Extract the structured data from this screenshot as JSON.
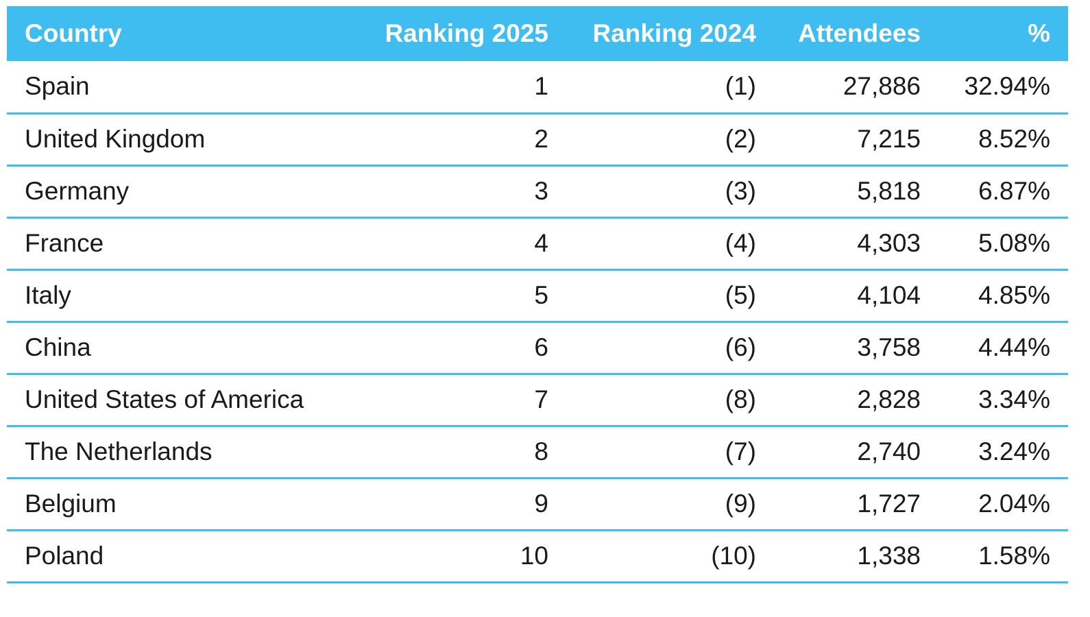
{
  "chart_data": {
    "type": "table",
    "columns": [
      "Country",
      "Ranking 2025",
      "Ranking 2024",
      "Attendees",
      "%"
    ],
    "rows": [
      {
        "country": "Spain",
        "rank2025": "1",
        "rank2024": "(1)",
        "attendees": "27,886",
        "pct": "32.94%"
      },
      {
        "country": "United Kingdom",
        "rank2025": "2",
        "rank2024": "(2)",
        "attendees": "7,215",
        "pct": "8.52%"
      },
      {
        "country": "Germany",
        "rank2025": "3",
        "rank2024": "(3)",
        "attendees": "5,818",
        "pct": "6.87%"
      },
      {
        "country": "France",
        "rank2025": "4",
        "rank2024": "(4)",
        "attendees": "4,303",
        "pct": "5.08%"
      },
      {
        "country": "Italy",
        "rank2025": "5",
        "rank2024": "(5)",
        "attendees": "4,104",
        "pct": "4.85%"
      },
      {
        "country": "China",
        "rank2025": "6",
        "rank2024": "(6)",
        "attendees": "3,758",
        "pct": "4.44%"
      },
      {
        "country": "United States of America",
        "rank2025": "7",
        "rank2024": "(8)",
        "attendees": "2,828",
        "pct": "3.34%"
      },
      {
        "country": "The Netherlands",
        "rank2025": "8",
        "rank2024": "(7)",
        "attendees": "2,740",
        "pct": "3.24%"
      },
      {
        "country": "Belgium",
        "rank2025": "9",
        "rank2024": "(9)",
        "attendees": "1,727",
        "pct": "2.04%"
      },
      {
        "country": "Poland",
        "rank2025": "10",
        "rank2024": "(10)",
        "attendees": "1,338",
        "pct": "1.58%"
      }
    ]
  },
  "colors": {
    "header_bg": "#3fbdf1",
    "header_text": "#ffffff",
    "divider": "#3fbdf1",
    "body_text": "#1a1a1a"
  }
}
